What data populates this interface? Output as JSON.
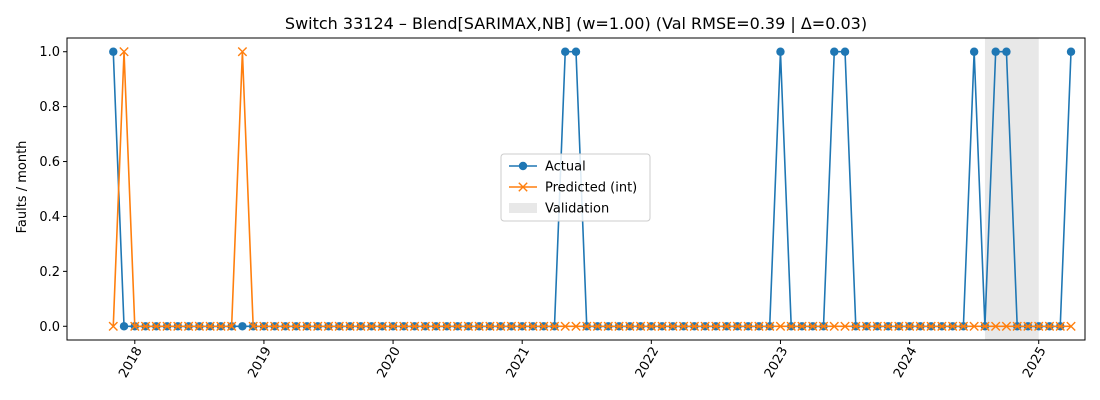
{
  "chart_data": {
    "type": "line",
    "title": "Switch 33124 – Blend[SARIMAX,NB] (w=1.00) (Val RMSE=0.39 | Δ=0.03)",
    "xlabel": "",
    "ylabel": "Faults / month",
    "x_start": "2017-11",
    "x_end": "2025-01",
    "x_ticks": [
      "2018",
      "2019",
      "2020",
      "2021",
      "2022",
      "2023",
      "2024",
      "2025"
    ],
    "y_ticks": [
      "0.0",
      "0.2",
      "0.4",
      "0.6",
      "0.8",
      "1.0"
    ],
    "ylim": [
      -0.05,
      1.05
    ],
    "grid": false,
    "legend_position": "center",
    "validation_span": [
      "2024-08",
      "2025-01"
    ],
    "series": [
      {
        "name": "Actual",
        "color": "#1f77b4",
        "marker": "circle",
        "values": [
          1,
          0,
          0,
          0,
          0,
          0,
          0,
          0,
          0,
          0,
          0,
          0,
          0,
          0,
          0,
          0,
          0,
          0,
          0,
          0,
          0,
          0,
          0,
          0,
          0,
          0,
          0,
          0,
          0,
          0,
          0,
          0,
          0,
          0,
          0,
          0,
          0,
          0,
          0,
          0,
          0,
          0,
          1,
          1,
          0,
          0,
          0,
          0,
          0,
          0,
          0,
          0,
          0,
          0,
          0,
          0,
          0,
          0,
          0,
          0,
          0,
          0,
          1,
          0,
          0,
          0,
          0,
          1,
          1,
          0,
          0,
          0,
          0,
          0,
          0,
          0,
          0,
          0,
          0,
          0,
          1,
          0,
          1,
          1,
          0,
          0,
          0,
          0,
          0,
          1
        ]
      },
      {
        "name": "Predicted (int)",
        "color": "#ff7f0e",
        "marker": "x",
        "values": [
          0,
          1,
          0,
          0,
          0,
          0,
          0,
          0,
          0,
          0,
          0,
          0,
          1,
          0,
          0,
          0,
          0,
          0,
          0,
          0,
          0,
          0,
          0,
          0,
          0,
          0,
          0,
          0,
          0,
          0,
          0,
          0,
          0,
          0,
          0,
          0,
          0,
          0,
          0,
          0,
          0,
          0,
          0,
          0,
          0,
          0,
          0,
          0,
          0,
          0,
          0,
          0,
          0,
          0,
          0,
          0,
          0,
          0,
          0,
          0,
          0,
          0,
          0,
          0,
          0,
          0,
          0,
          0,
          0,
          0,
          0,
          0,
          0,
          0,
          0,
          0,
          0,
          0,
          0,
          0,
          0,
          0,
          0,
          0,
          0,
          0,
          0,
          0,
          0,
          0
        ]
      }
    ],
    "validation_label": "Validation",
    "validation_color": "#e8e8e8"
  }
}
